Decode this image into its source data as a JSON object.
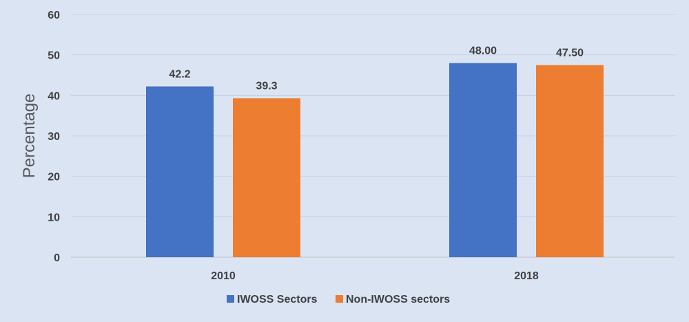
{
  "chart_data": {
    "type": "bar",
    "categories": [
      "2010",
      "2018"
    ],
    "series": [
      {
        "name": "IWOSS Sectors",
        "values": [
          42.2,
          48.0
        ],
        "labels": [
          "42.2",
          "48.00"
        ],
        "color": "#4472c4"
      },
      {
        "name": "Non-IWOSS sectors",
        "values": [
          39.3,
          47.5
        ],
        "labels": [
          "39.3",
          "47.50"
        ],
        "color": "#ed7d31"
      }
    ],
    "ylabel": "Percentage",
    "ylim": [
      0,
      60
    ],
    "yticks": [
      0,
      10,
      20,
      30,
      40,
      50,
      60
    ],
    "grid": true,
    "legend": "bottom"
  }
}
